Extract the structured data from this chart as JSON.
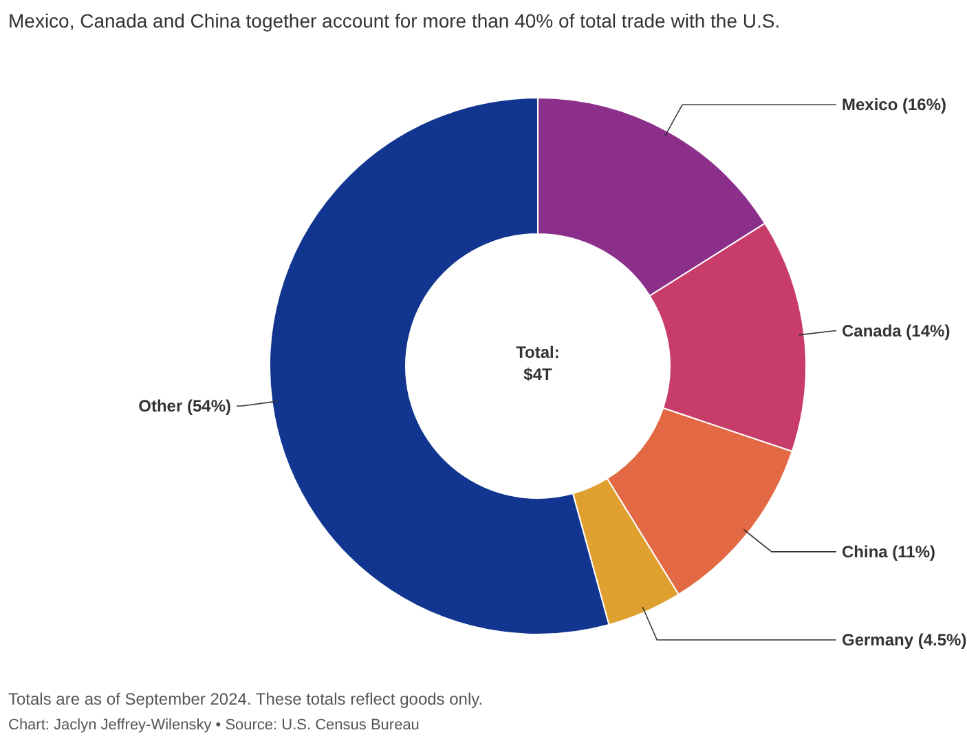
{
  "chart_data": {
    "type": "donut",
    "title": "Mexico, Canada and China together account for more than 40% of total trade with the U.S.",
    "categories": [
      "Mexico (16%)",
      "Canada (14%)",
      "China (11%)",
      "Germany (4.5%)",
      "Other (54%)"
    ],
    "values": [
      16,
      14,
      11,
      4.5,
      54
    ],
    "colors": [
      "#8b2f8a",
      "#c83c6a",
      "#e26944",
      "#e0a030",
      "#12358f"
    ],
    "annotations": [
      "Total:\n$4T",
      "Totals are as of September 2024. These totals reflect goods only.",
      "Chart: Jaclyn Jeffrey-Wilensky • Source: U.S. Census Bureau"
    ]
  }
}
